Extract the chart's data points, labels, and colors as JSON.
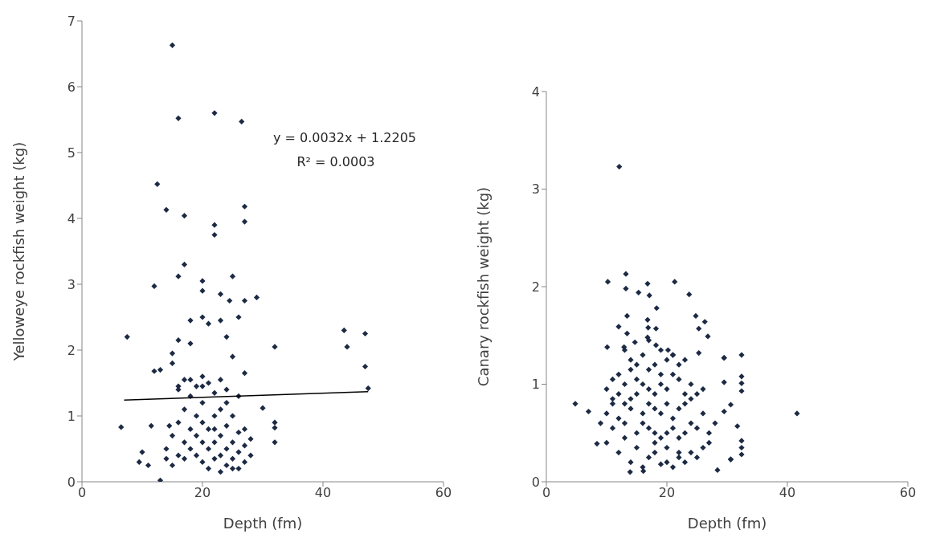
{
  "chart_data": [
    {
      "type": "scatter",
      "xlabel": "Depth (fm)",
      "ylabel": "Yelloweye rockfish weight (kg)",
      "xlim": [
        0,
        60
      ],
      "xticks": [
        0,
        20,
        40,
        60
      ],
      "ylim": [
        0,
        7
      ],
      "yticks": [
        0,
        1,
        2,
        3,
        4,
        5,
        6,
        7
      ],
      "grid": false,
      "legend": false,
      "marker": "diamond",
      "annotations": [
        "y = 0.0032x + 1.2205",
        "R² = 0.0003"
      ],
      "series": [
        {
          "color": "#1c2a44",
          "x": [
            7.5,
            6.5,
            9.5,
            10,
            11,
            11.5,
            12,
            12,
            12.5,
            13,
            13,
            14,
            15,
            15,
            15,
            14.5,
            16,
            16,
            17,
            17,
            16,
            18,
            18,
            17,
            16,
            20,
            20,
            20,
            21,
            20,
            22,
            22,
            22,
            23,
            23,
            24,
            25,
            24.5,
            26,
            25,
            26.5,
            27,
            27,
            27,
            29,
            27,
            30,
            32,
            32,
            32,
            32,
            43.5,
            44,
            47,
            47,
            47.5,
            14,
            15,
            16,
            16,
            17,
            17,
            17,
            18,
            18,
            18,
            19,
            19,
            19,
            20,
            20,
            20,
            20,
            21,
            21,
            21,
            21,
            22,
            22,
            22,
            22,
            23,
            23,
            23,
            23,
            23,
            24,
            24,
            24,
            24,
            25,
            25,
            25,
            26,
            26,
            26,
            26,
            27,
            27,
            27,
            28,
            28,
            15,
            18,
            19,
            24,
            14,
            16,
            20,
            22,
            25
          ],
          "values": [
            2.2,
            0.83,
            0.3,
            0.45,
            0.25,
            0.85,
            1.68,
            2.97,
            4.52,
            1.7,
            0.02,
            4.13,
            6.63,
            1.95,
            1.8,
            0.85,
            5.52,
            3.12,
            4.04,
            3.3,
            2.15,
            2.45,
            2.1,
            1.55,
            1.4,
            3.05,
            2.9,
            2.5,
            2.4,
            1.6,
            5.6,
            3.9,
            3.75,
            2.85,
            2.45,
            2.2,
            3.12,
            2.75,
            2.5,
            1.9,
            5.47,
            4.18,
            3.95,
            2.75,
            2.8,
            1.65,
            1.12,
            2.05,
            0.9,
            0.82,
            0.6,
            2.3,
            2.05,
            2.25,
            1.75,
            1.42,
            0.5,
            0.7,
            0.4,
            0.9,
            0.6,
            0.35,
            1.1,
            0.8,
            0.5,
            1.3,
            0.7,
            0.4,
            1.0,
            0.6,
            0.3,
            0.9,
            1.2,
            0.5,
            0.8,
            0.2,
            1.5,
            0.6,
            0.35,
            1.0,
            1.35,
            0.7,
            0.4,
            0.15,
            1.1,
            1.55,
            0.5,
            0.85,
            0.25,
            1.4,
            0.6,
            0.35,
            1.0,
            0.45,
            0.75,
            0.2,
            1.3,
            0.3,
            0.55,
            0.8,
            0.4,
            0.65,
            0.25,
            1.55,
            1.45,
            1.2,
            0.35,
            1.45,
            1.45,
            0.8,
            0.2
          ]
        },
        {
          "type": "line",
          "color": "#000000",
          "marker": "none",
          "x": [
            7,
            47.5
          ],
          "values": [
            1.24,
            1.37
          ]
        }
      ]
    },
    {
      "type": "scatter",
      "xlabel": "Depth (fm)",
      "ylabel": "Canary rockfish weight (kg)",
      "xlim": [
        0,
        60
      ],
      "xticks": [
        0,
        20,
        40,
        60
      ],
      "ylim": [
        0,
        4
      ],
      "yticks": [
        0,
        1,
        2,
        3,
        4
      ],
      "grid": false,
      "legend": false,
      "marker": "diamond",
      "series": [
        {
          "color": "#1c2a44",
          "x": [
            12.1,
            13.2,
            10.2,
            16.8,
            21.3,
            13.2,
            15.3,
            17.1,
            23.7,
            18.3,
            13.4,
            24.8,
            26.3,
            16.8,
            12,
            16.9,
            18.2,
            25.3,
            13.4,
            26.8,
            16.8,
            14.7,
            18.2,
            10.1,
            12.9,
            20.2,
            25.3,
            29.5,
            4.8,
            7,
            8.4,
            13.9,
            16.1,
            28.4,
            30.6,
            32.4,
            29.5,
            32.4,
            32.4,
            32.4,
            41.6,
            32.4,
            32.4,
            32.4,
            30.6,
            31.7,
            29.5,
            30.6,
            29.5,
            10,
            11,
            12,
            13,
            14,
            15,
            16,
            17,
            18,
            19,
            20,
            21,
            22,
            23,
            24,
            25,
            26,
            27,
            9,
            10,
            11,
            12,
            13,
            14,
            15,
            16,
            17,
            18,
            19,
            20,
            21,
            22,
            23,
            24,
            25,
            26,
            27,
            28,
            10,
            11,
            12,
            13,
            14,
            15,
            16,
            17,
            18,
            19,
            20,
            21,
            22,
            23,
            24,
            25,
            26,
            11,
            12,
            13,
            14,
            15,
            16,
            17,
            18,
            19,
            20,
            21,
            22,
            23,
            24,
            14,
            15,
            16,
            17,
            18,
            19,
            20,
            21,
            22,
            13,
            17,
            19,
            21,
            23,
            20,
            18,
            22
          ],
          "values": [
            3.23,
            2.13,
            2.05,
            2.03,
            2.05,
            1.98,
            1.94,
            1.91,
            1.92,
            1.78,
            1.7,
            1.7,
            1.64,
            1.66,
            1.59,
            1.58,
            1.57,
            1.57,
            1.52,
            1.49,
            1.48,
            1.43,
            1.4,
            1.38,
            1.38,
            1.35,
            1.32,
            1.27,
            0.8,
            0.72,
            0.39,
            0.1,
            0.11,
            0.12,
            0.23,
            1.3,
            1.27,
            1.08,
            1.01,
            0.93,
            0.7,
            0.42,
            0.35,
            0.28,
            0.23,
            0.57,
            1.02,
            0.79,
            0.72,
            0.4,
            0.55,
            0.3,
            0.45,
            0.2,
            0.35,
            0.15,
            0.25,
            0.3,
            0.18,
            0.2,
            0.15,
            0.25,
            0.2,
            0.3,
            0.25,
            0.35,
            0.4,
            0.6,
            0.7,
            0.8,
            0.65,
            0.6,
            0.75,
            0.5,
            0.6,
            0.55,
            0.5,
            0.45,
            0.5,
            0.55,
            0.45,
            0.5,
            0.6,
            0.55,
            0.7,
            0.5,
            0.6,
            0.95,
            0.85,
            0.9,
            0.8,
            0.85,
            0.9,
            0.7,
            0.8,
            0.75,
            0.7,
            0.8,
            0.65,
            0.75,
            0.8,
            0.85,
            0.9,
            0.95,
            1.05,
            1.1,
            1.0,
            1.15,
            1.05,
            1.0,
            0.95,
            0.9,
            1.0,
            0.95,
            1.1,
            1.05,
            0.9,
            1.0,
            1.25,
            1.2,
            1.3,
            1.15,
            1.2,
            1.1,
            1.25,
            1.3,
            1.2,
            1.35,
            1.45,
            1.35,
            1.3,
            1.25,
            0.35,
            0.4,
            0.3
          ]
        }
      ]
    }
  ]
}
